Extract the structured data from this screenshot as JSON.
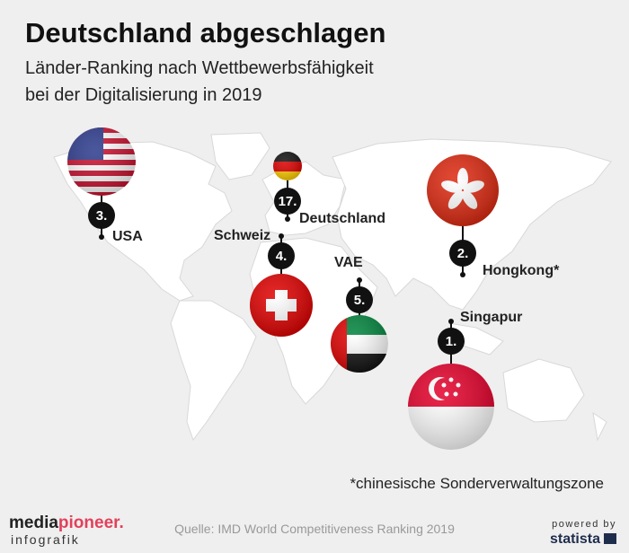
{
  "header": {
    "title": "Deutschland abgeschlagen",
    "subtitle_lines": [
      "Länder-Ranking nach Wettbewerbsfähigkeit",
      "bei der Digitalisierung in 2019"
    ]
  },
  "markers": [
    {
      "rank": "3.",
      "country": "USA"
    },
    {
      "rank": "17.",
      "country": "Deutschland"
    },
    {
      "rank": "4.",
      "country": "Schweiz"
    },
    {
      "rank": "5.",
      "country": "VAE"
    },
    {
      "rank": "2.",
      "country": "Hongkong*"
    },
    {
      "rank": "1.",
      "country": "Singapur"
    }
  ],
  "footnote": "*chinesische Sonderverwaltungszone",
  "source": "Quelle: IMD World Competitiveness Ranking 2019",
  "branding": {
    "media": "media",
    "pioneer": "pioneer.",
    "publisher_sub": "infografik",
    "powered_by": "powered by",
    "statista": "statista"
  }
}
